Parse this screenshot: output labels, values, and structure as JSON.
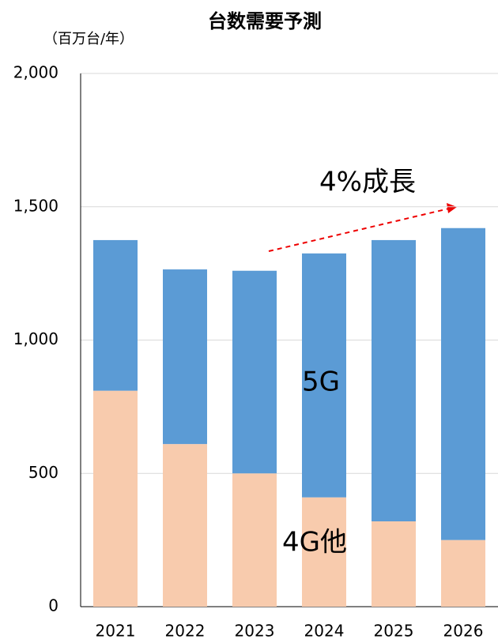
{
  "chart_data": {
    "type": "stacked_bar",
    "title": "台数需要予測",
    "y_axis_label": "（百万台/年）",
    "categories": [
      "2021",
      "2022",
      "2023",
      "2024",
      "2025",
      "2026"
    ],
    "series": [
      {
        "name": "4G他",
        "color": "#f8cbad",
        "values": [
          810,
          610,
          500,
          410,
          320,
          250
        ]
      },
      {
        "name": "5G",
        "color": "#5b9bd5",
        "values": [
          565,
          655,
          760,
          915,
          1055,
          1170
        ]
      }
    ],
    "ylim": [
      0,
      2000
    ],
    "yticks": [
      0,
      500,
      {
        "value": 1000,
        "label": "1,000"
      },
      {
        "value": 1500,
        "label": "1,500"
      },
      {
        "value": 2000,
        "label": "2,000"
      }
    ],
    "grid": true,
    "annotations": [
      "4%成長"
    ]
  }
}
